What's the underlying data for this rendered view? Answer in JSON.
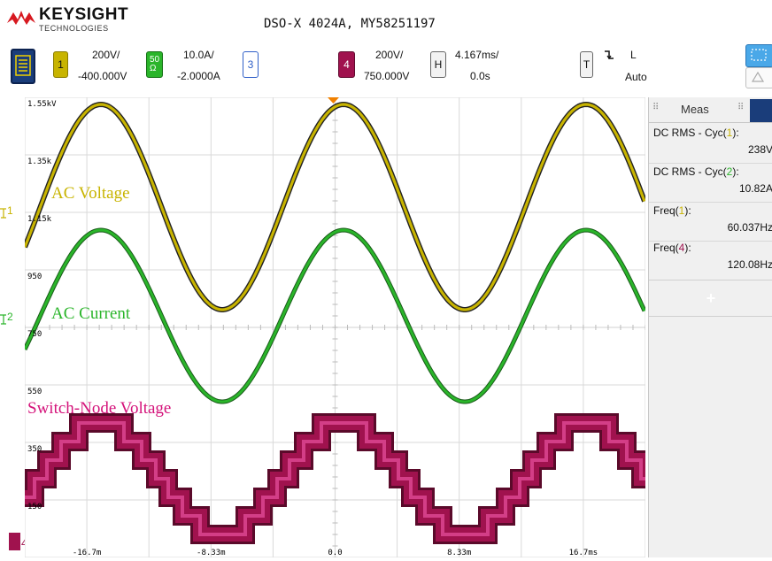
{
  "header": {
    "brand": "KEYSIGHT",
    "brand_sub": "TECHNOLOGIES",
    "model": "DSO-X 4024A, MY58251197"
  },
  "toolbar": {
    "ch1": {
      "num": "1",
      "scale": "200V/",
      "offset": "-400.000V",
      "color": "#c8b400"
    },
    "ch2": {
      "num": "50\nΩ",
      "scale": "10.0A/",
      "offset": "-2.0000A",
      "color": "#2ab52a"
    },
    "ch3": {
      "num": "3",
      "color": "#3060c8"
    },
    "ch4": {
      "num": "4",
      "scale": "200V/",
      "offset": "750.000V",
      "color": "#a0124e"
    },
    "horizontal": {
      "key": "H",
      "scale": "4.167ms/",
      "delay": "0.0s"
    },
    "trigger": {
      "key": "T",
      "slope_icon": "falling-edge-icon",
      "source": "L",
      "mode": "Auto"
    }
  },
  "screen": {
    "y_labels": [
      "1.55kV",
      "1.35k",
      "1.15k",
      "950",
      "750",
      "550",
      "350",
      "150"
    ],
    "x_labels": [
      "-16.7m",
      "-8.33m",
      "0.0",
      "8.33m",
      "16.7ms"
    ],
    "wave_labels": [
      {
        "text": "AC Voltage",
        "color": "#c8b400"
      },
      {
        "text": "AC Current",
        "color": "#2ab52a"
      },
      {
        "text": "Switch-Node Voltage",
        "color": "#d4127a"
      }
    ],
    "channel_markers": [
      "1",
      "2",
      "4"
    ],
    "colors": {
      "ch1": "#c8b400",
      "ch2": "#2ab52a",
      "ch4": "#a0124e",
      "grid": "#d9d9d9",
      "trigger": "#f08000"
    }
  },
  "meas": {
    "title": "Meas",
    "items": [
      {
        "label": "DC RMS - Cyc(",
        "ch": "1",
        "value": "238V",
        "chcolor": "#c8b400"
      },
      {
        "label": "DC RMS - Cyc(",
        "ch": "2",
        "value": "10.82A",
        "chcolor": "#2ab52a"
      },
      {
        "label": "Freq(",
        "ch": "1",
        "value": "60.037Hz",
        "chcolor": "#c8b400"
      },
      {
        "label": "Freq(",
        "ch": "4",
        "value": "120.08Hz",
        "chcolor": "#a0124e"
      }
    ],
    "add_label": "+"
  },
  "chart_data": {
    "type": "line",
    "x": {
      "label": "",
      "unit": "ms",
      "range": [
        -20.8,
        20.8
      ]
    },
    "series": [
      {
        "name": "AC Voltage",
        "kind": "sine",
        "freq_hz": 60.037,
        "rms": 238,
        "color": "#c8b400"
      },
      {
        "name": "AC Current",
        "kind": "sine",
        "freq_hz": 60.037,
        "rms": 10.82,
        "color": "#2ab52a"
      },
      {
        "name": "Switch-Node Voltage",
        "kind": "multilevel",
        "freq_hz": 60.037,
        "levels": 5,
        "color": "#a0124e"
      }
    ]
  }
}
